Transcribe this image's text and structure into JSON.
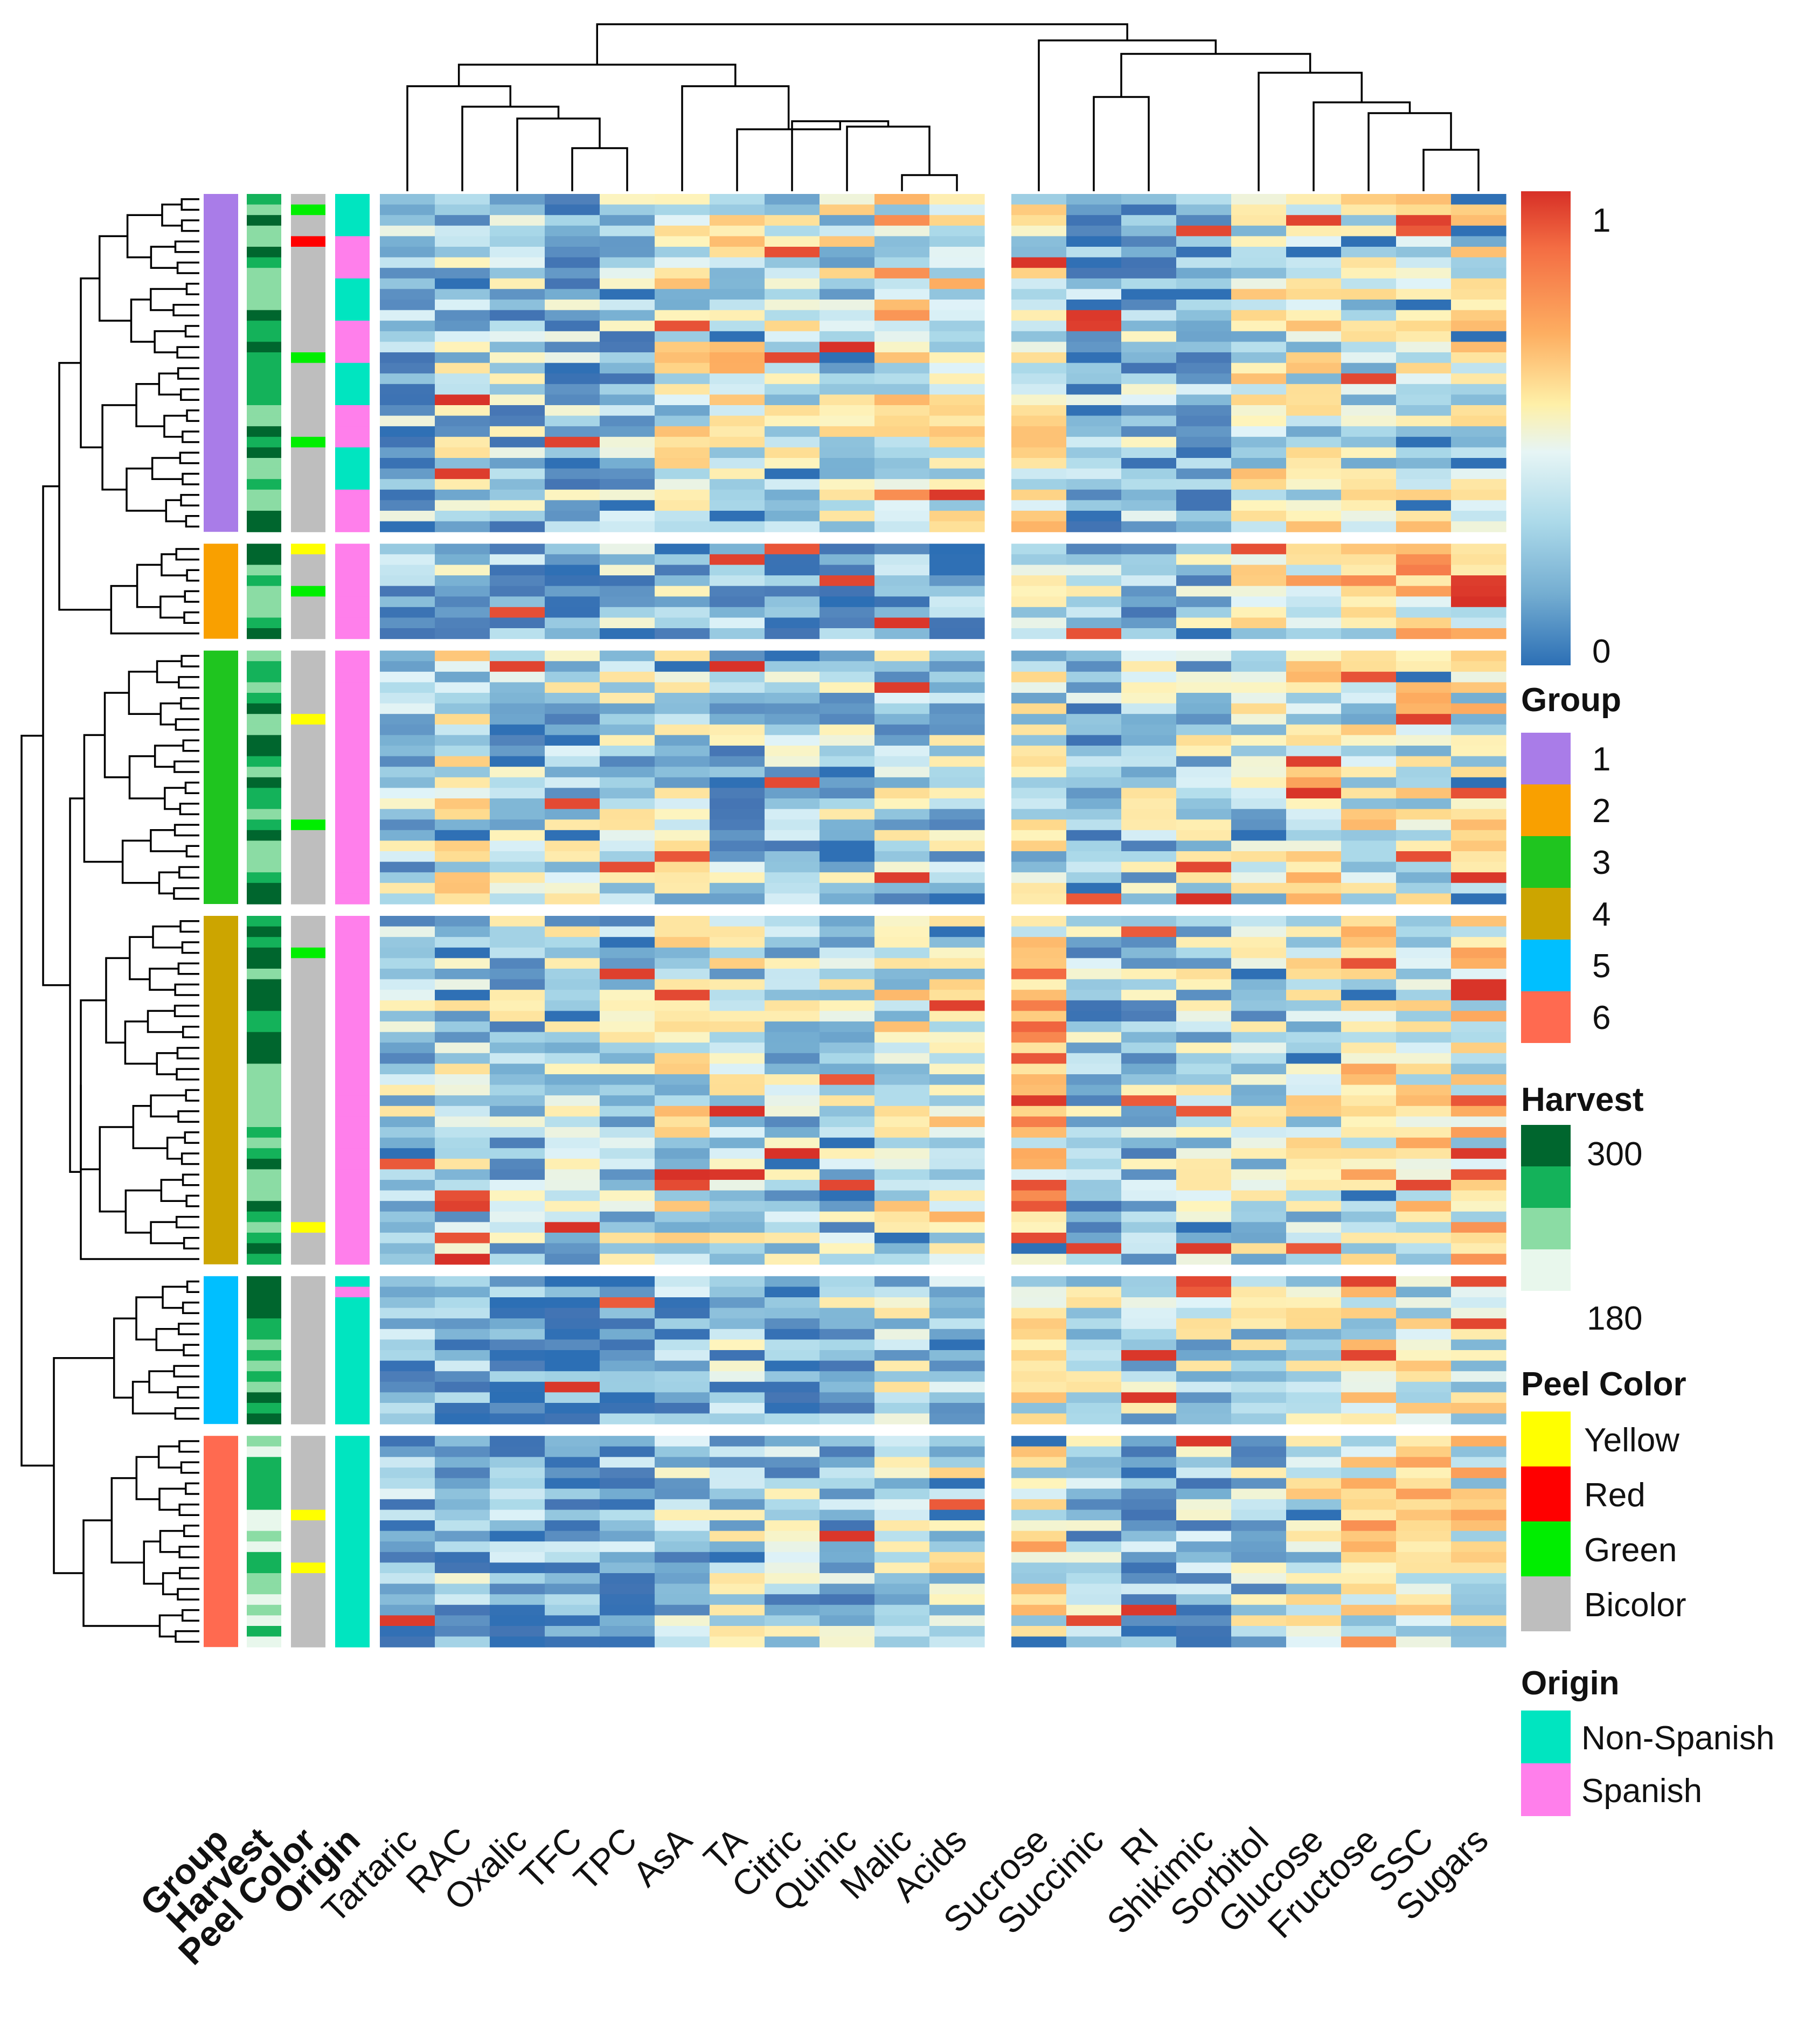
{
  "chart_data": {
    "type": "heatmap",
    "title": "",
    "row_count": 132,
    "columns": [
      "Tartaric",
      "RAC",
      "Oxalic",
      "TFC",
      "TPC",
      "AsA",
      "TA",
      "Citric",
      "Quinic",
      "Malic",
      "Acids",
      "Sucrose",
      "Succinic",
      "RI",
      "Shikimic",
      "Sorbitol",
      "Glucose",
      "Fructose",
      "SSC",
      "Sugars"
    ],
    "annotation_columns": [
      "Group",
      "Harvest",
      "Peel Color",
      "Origin"
    ],
    "value_range": [
      0,
      1
    ],
    "groups": [
      {
        "id": 1,
        "rows": 32,
        "origin": "mixed"
      },
      {
        "id": 2,
        "rows": 9,
        "origin": "Spanish"
      },
      {
        "id": 3,
        "rows": 24,
        "origin": "Spanish"
      },
      {
        "id": 4,
        "rows": 33,
        "origin": "Spanish"
      },
      {
        "id": 5,
        "rows": 14,
        "origin": "mixed"
      },
      {
        "id": 6,
        "rows": 20,
        "origin": "Non-Spanish"
      }
    ],
    "column_split_after": "Acids",
    "legends": {
      "colorbar": {
        "max_label": "1",
        "min_label": "0"
      },
      "group": {
        "title": "Group",
        "items": [
          {
            "label": "1",
            "color": "#A97CE8"
          },
          {
            "label": "2",
            "color": "#F9A000"
          },
          {
            "label": "3",
            "color": "#1FC51F"
          },
          {
            "label": "4",
            "color": "#CCA500"
          },
          {
            "label": "5",
            "color": "#00BFFF"
          },
          {
            "label": "6",
            "color": "#FF6A50"
          }
        ]
      },
      "harvest": {
        "title": "Harvest",
        "max_label": "300",
        "min_label": "180",
        "colors": [
          "#00662E",
          "#14B25A",
          "#8BDCA4",
          "#E8F7EC"
        ]
      },
      "peel_color": {
        "title": "Peel Color",
        "items": [
          {
            "label": "Yellow",
            "color": "#FFFF00"
          },
          {
            "label": "Red",
            "color": "#FF0000"
          },
          {
            "label": "Green",
            "color": "#00EE00"
          },
          {
            "label": "Bicolor",
            "color": "#BEBEBE"
          }
        ]
      },
      "origin": {
        "title": "Origin",
        "items": [
          {
            "label": "Non-Spanish",
            "color": "#00E5C0"
          },
          {
            "label": "Spanish",
            "color": "#FF7FEB"
          }
        ]
      }
    }
  }
}
